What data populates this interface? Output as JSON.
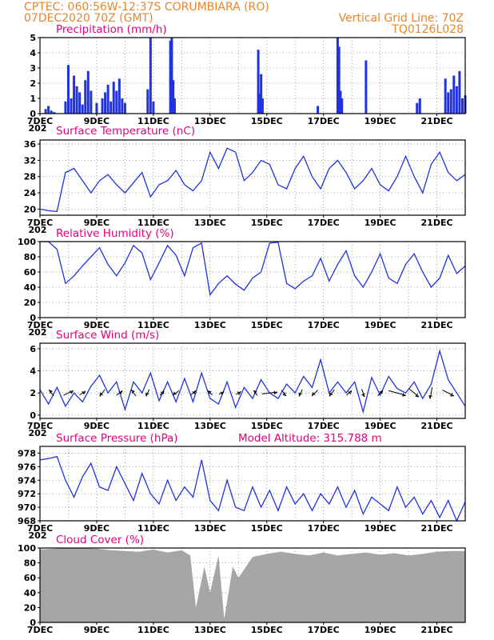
{
  "header": {
    "line1": "CPTEC:   060:56W-12:37S   CORUMBIARA (RO)",
    "line2_left": "07DEC2020 70Z (GMT)",
    "line2_right": "Vertical Grid Line: 70Z",
    "line3_right": "TQ0126L028"
  },
  "colors": {
    "line": "#2233dd",
    "bar": "#2233dd",
    "cloud": "#a6a6a6",
    "header": "#e8862a",
    "title": "#e6007e",
    "grid": "#888888",
    "arrow": "#000000"
  },
  "x_axis": {
    "start_day": 7,
    "end_day": 22,
    "tick_labels": [
      "7DEC",
      "9DEC",
      "11DEC",
      "13DEC",
      "15DEC",
      "17DEC",
      "19DEC",
      "21DEC"
    ],
    "tick_days": [
      7,
      9,
      11,
      13,
      15,
      17,
      19,
      21
    ],
    "cut_label": "202"
  },
  "chart_data": [
    {
      "type": "bar",
      "title": "Precipitation (mm/h)",
      "ylim": [
        0,
        5
      ],
      "yticks": [
        0,
        1,
        2,
        3,
        4,
        5
      ],
      "x": [
        7.2,
        7.3,
        7.4,
        7.5,
        7.9,
        8.0,
        8.1,
        8.2,
        8.3,
        8.4,
        8.5,
        8.6,
        8.7,
        8.8,
        9.0,
        9.2,
        9.3,
        9.4,
        9.5,
        9.6,
        9.7,
        9.8,
        9.9,
        10.0,
        10.8,
        10.9,
        11.0,
        11.6,
        11.65,
        11.7,
        11.75,
        14.7,
        14.75,
        14.8,
        14.85,
        16.8,
        17.5,
        17.55,
        17.6,
        17.65,
        18.5,
        20.3,
        20.4,
        21.3,
        21.4,
        21.5,
        21.6,
        21.7,
        21.8,
        21.9,
        22.0
      ],
      "values": [
        0.3,
        0.5,
        0.2,
        0.1,
        0.8,
        3.2,
        1.0,
        2.5,
        1.8,
        1.4,
        0.6,
        2.2,
        2.8,
        1.5,
        0.7,
        1.0,
        1.4,
        1.9,
        0.8,
        2.1,
        1.5,
        2.3,
        1.0,
        0.7,
        1.6,
        5.0,
        0.8,
        4.8,
        5.0,
        2.2,
        1.0,
        4.2,
        1.3,
        2.6,
        1.0,
        0.5,
        5.0,
        4.4,
        1.5,
        1.0,
        3.5,
        0.7,
        1.0,
        2.3,
        1.4,
        1.6,
        2.5,
        1.8,
        2.8,
        1.0,
        1.2
      ]
    },
    {
      "type": "line",
      "title": "Surface Temperature (nC)",
      "ylim": [
        18.5,
        37
      ],
      "yticks": [
        20,
        24,
        28,
        32,
        36
      ],
      "x": [
        7.0,
        7.3,
        7.6,
        7.9,
        8.2,
        8.5,
        8.8,
        9.1,
        9.4,
        9.7,
        10.0,
        10.3,
        10.6,
        10.9,
        11.2,
        11.5,
        11.8,
        12.1,
        12.4,
        12.7,
        13.0,
        13.3,
        13.6,
        13.9,
        14.2,
        14.5,
        14.8,
        15.1,
        15.4,
        15.7,
        16.0,
        16.3,
        16.6,
        16.9,
        17.2,
        17.5,
        17.8,
        18.1,
        18.4,
        18.7,
        19.0,
        19.3,
        19.6,
        19.9,
        20.2,
        20.5,
        20.8,
        21.1,
        21.4,
        21.7,
        22.0
      ],
      "values": [
        20,
        19.6,
        19.4,
        29,
        30,
        27,
        24,
        27,
        28.5,
        26,
        24,
        26.5,
        29,
        23,
        26,
        27,
        29.5,
        26,
        24.5,
        27,
        34,
        30,
        35,
        34,
        27,
        29,
        32,
        31,
        26,
        25,
        30,
        33,
        28,
        25,
        30,
        32,
        29,
        25,
        27,
        30,
        26,
        24.5,
        28,
        33,
        28,
        24,
        31,
        34,
        29,
        27,
        28.5
      ]
    },
    {
      "type": "line",
      "title": "Relative Humidity (%)",
      "ylim": [
        0,
        100
      ],
      "yticks": [
        0,
        20,
        40,
        60,
        80,
        100
      ],
      "x": [
        7.0,
        7.3,
        7.6,
        7.9,
        8.2,
        8.5,
        8.8,
        9.1,
        9.4,
        9.7,
        10.0,
        10.3,
        10.6,
        10.9,
        11.2,
        11.5,
        11.8,
        12.1,
        12.4,
        12.7,
        13.0,
        13.3,
        13.6,
        13.9,
        14.2,
        14.5,
        14.8,
        15.1,
        15.4,
        15.7,
        16.0,
        16.3,
        16.6,
        16.9,
        17.2,
        17.5,
        17.8,
        18.1,
        18.4,
        18.7,
        19.0,
        19.3,
        19.6,
        19.9,
        20.2,
        20.5,
        20.8,
        21.1,
        21.4,
        21.7,
        22.0
      ],
      "values": [
        100,
        100,
        90,
        45,
        55,
        68,
        80,
        92,
        70,
        55,
        72,
        95,
        85,
        50,
        72,
        95,
        82,
        55,
        92,
        98,
        30,
        45,
        55,
        44,
        36,
        52,
        60,
        98,
        99,
        45,
        38,
        48,
        55,
        78,
        48,
        70,
        88,
        55,
        40,
        60,
        84,
        52,
        45,
        70,
        84,
        60,
        40,
        52,
        82,
        58,
        68
      ]
    },
    {
      "type": "line",
      "title": "Surface Wind (m/s)",
      "ylim": [
        -0.3,
        6.5
      ],
      "yticks": [
        0,
        2,
        4,
        6
      ],
      "x": [
        7.0,
        7.3,
        7.6,
        7.9,
        8.2,
        8.5,
        8.8,
        9.1,
        9.4,
        9.7,
        10.0,
        10.3,
        10.6,
        10.9,
        11.2,
        11.5,
        11.8,
        12.1,
        12.4,
        12.7,
        13.0,
        13.3,
        13.6,
        13.9,
        14.2,
        14.5,
        14.8,
        15.1,
        15.4,
        15.7,
        16.0,
        16.3,
        16.6,
        16.9,
        17.2,
        17.5,
        17.8,
        18.1,
        18.4,
        18.7,
        19.0,
        19.3,
        19.6,
        19.9,
        20.2,
        20.5,
        20.8,
        21.1,
        21.4,
        21.7,
        22.0
      ],
      "values": [
        2.3,
        1.0,
        2.5,
        0.8,
        2.0,
        1.2,
        2.6,
        3.6,
        2.0,
        3.0,
        0.5,
        3.0,
        2.0,
        3.8,
        1.3,
        3.0,
        1.2,
        3.3,
        1.2,
        3.8,
        1.5,
        1.0,
        3.0,
        0.7,
        2.5,
        1.5,
        3.2,
        2.0,
        1.5,
        2.8,
        2.0,
        3.5,
        2.5,
        5.0,
        2.0,
        3.0,
        2.0,
        3.0,
        0.3,
        3.4,
        1.8,
        3.5,
        2.4,
        2.0,
        3.0,
        1.5,
        2.8,
        5.8,
        3.2,
        2.0,
        0.8
      ],
      "arrows": {
        "x": [
          7.4,
          8.0,
          8.5,
          9.2,
          9.8,
          10.3,
          10.8,
          11.3,
          11.8,
          12.4,
          13.0,
          13.4,
          14.0,
          14.6,
          15.1,
          15.6,
          16.2,
          16.7,
          17.3,
          17.9,
          18.4,
          19.0,
          19.6,
          20.2,
          20.8,
          21.4
        ],
        "u": [
          -0.5,
          1.0,
          0.6,
          -0.5,
          0.6,
          -0.5,
          -0.3,
          0.4,
          -0.6,
          0.5,
          -0.5,
          0.5,
          0.5,
          -0.4,
          1.6,
          0.5,
          -0.3,
          -0.6,
          -0.5,
          0.5,
          0.3,
          0.5,
          1.8,
          1.0,
          -0.2,
          1.2
        ],
        "v": [
          0.6,
          0.5,
          0.4,
          -0.7,
          0.5,
          0.6,
          -0.7,
          0.5,
          -0.5,
          0.5,
          0.4,
          0.3,
          0.3,
          0.5,
          0.2,
          -0.6,
          -0.7,
          -0.6,
          -0.7,
          0.5,
          -0.8,
          0.6,
          -0.5,
          -0.8,
          -1.2,
          -0.6
        ]
      }
    },
    {
      "type": "line",
      "title": "Surface Pressure (hPa)",
      "annotation": "Model Altitude: 315.788 m",
      "ylim": [
        968,
        979
      ],
      "yticks": [
        968,
        970,
        972,
        974,
        976,
        978
      ],
      "x": [
        7.0,
        7.3,
        7.6,
        7.9,
        8.2,
        8.5,
        8.8,
        9.1,
        9.4,
        9.7,
        10.0,
        10.3,
        10.6,
        10.9,
        11.2,
        11.5,
        11.8,
        12.1,
        12.4,
        12.7,
        13.0,
        13.3,
        13.6,
        13.9,
        14.2,
        14.5,
        14.8,
        15.1,
        15.4,
        15.7,
        16.0,
        16.3,
        16.6,
        16.9,
        17.2,
        17.5,
        17.8,
        18.1,
        18.4,
        18.7,
        19.0,
        19.3,
        19.6,
        19.9,
        20.2,
        20.5,
        20.8,
        21.1,
        21.4,
        21.7,
        22.0
      ],
      "values": [
        977,
        977.2,
        977.5,
        974,
        971.5,
        974.5,
        976.5,
        973,
        972.5,
        976,
        973.5,
        971,
        975,
        972,
        970.5,
        974,
        971,
        973,
        971.5,
        977,
        971,
        969.5,
        974,
        970,
        969.5,
        973,
        970,
        972.5,
        969.5,
        973,
        970.5,
        972,
        969.5,
        972,
        970.5,
        973,
        970,
        972.5,
        969,
        971.5,
        970.5,
        969.5,
        973,
        970,
        971.5,
        969,
        971,
        968.5,
        971,
        968,
        970.8
      ]
    },
    {
      "type": "area",
      "title": "Cloud Cover (%)",
      "ylim": [
        0,
        100
      ],
      "yticks": [
        0,
        20,
        40,
        60,
        80,
        100
      ],
      "x": [
        7.0,
        7.5,
        8.0,
        8.5,
        9.0,
        9.5,
        10.0,
        10.5,
        11.0,
        11.5,
        12.0,
        12.3,
        12.5,
        12.8,
        13.0,
        13.3,
        13.5,
        13.8,
        14.0,
        14.5,
        15.0,
        15.5,
        16.0,
        16.5,
        17.0,
        17.5,
        18.0,
        18.5,
        19.0,
        19.5,
        20.0,
        20.5,
        21.0,
        21.5,
        22.0
      ],
      "values": [
        98,
        99,
        100,
        100,
        99,
        97,
        96,
        95,
        98,
        94,
        97,
        90,
        20,
        75,
        40,
        90,
        5,
        75,
        60,
        88,
        92,
        95,
        92,
        90,
        94,
        90,
        92,
        94,
        91,
        93,
        90,
        92,
        95,
        96,
        96
      ]
    }
  ]
}
